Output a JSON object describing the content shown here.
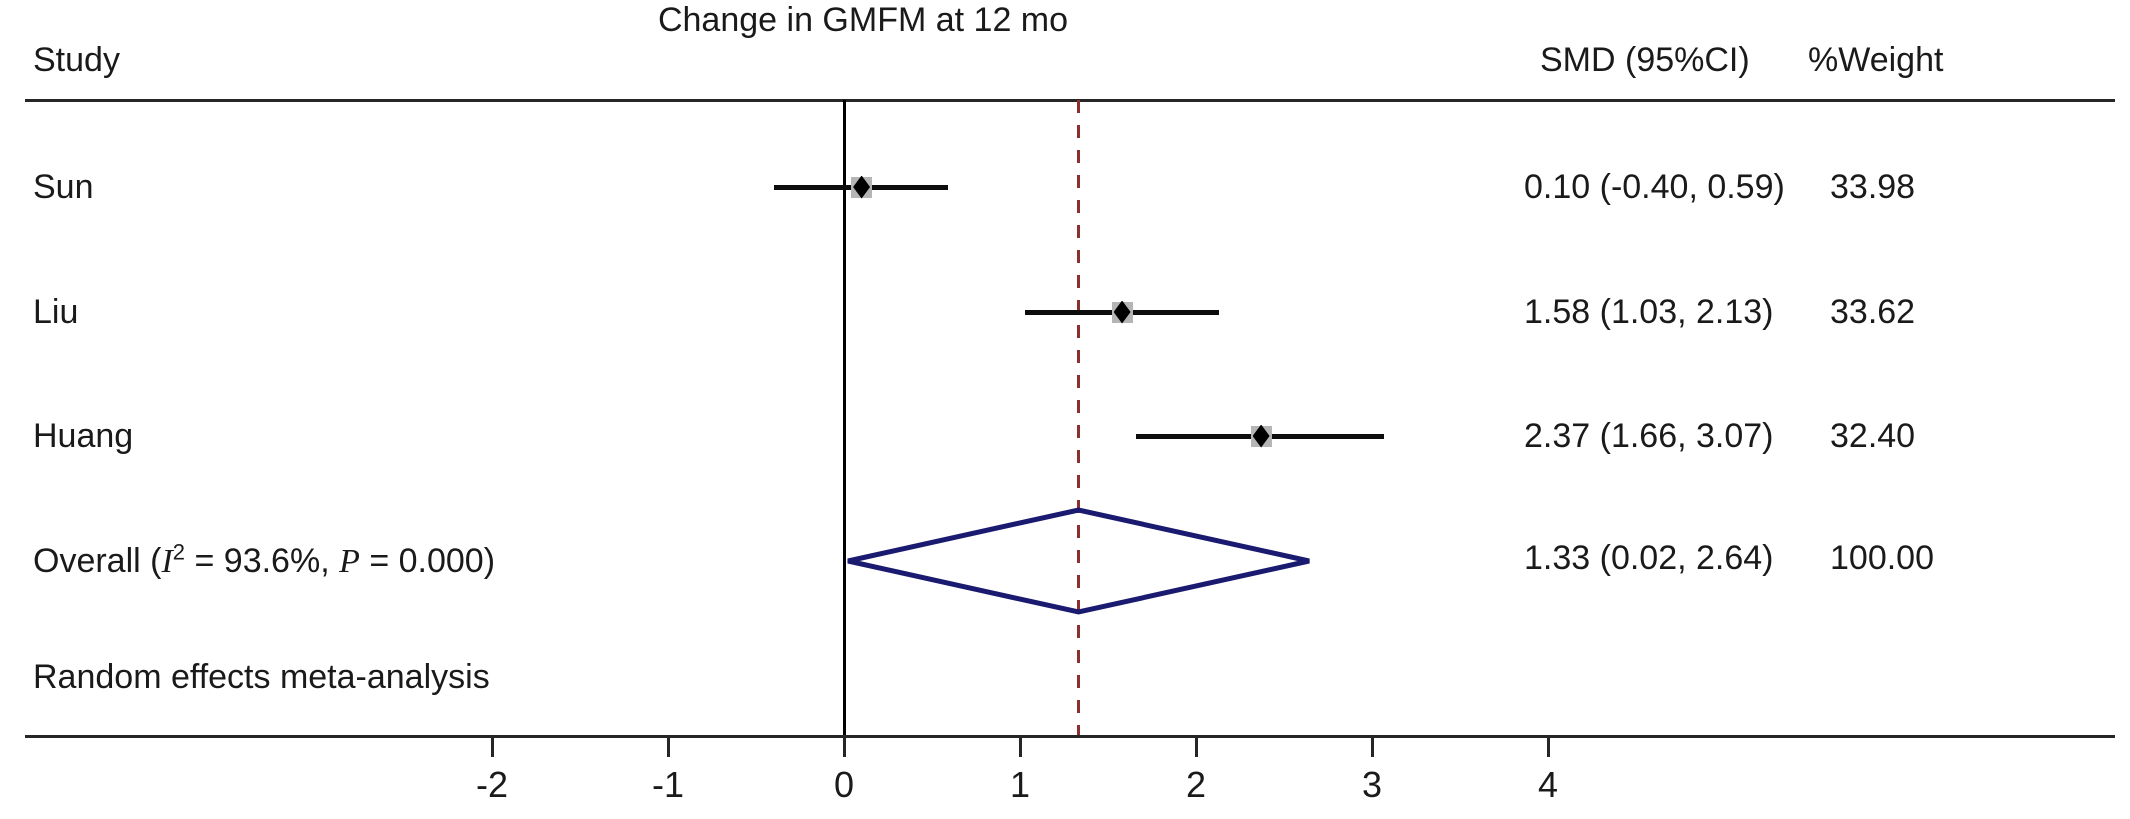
{
  "title": "Change in GMFM at 12 mo",
  "columns": {
    "study": "Study",
    "smd": "SMD (95%CI)",
    "weight": "%Weight"
  },
  "colors": {
    "text": "#1a1a1a",
    "frame_lines": "#262626",
    "zero_line": "#000000",
    "overall_dashed_line": "#8b2f2f",
    "ci_line": "#0d0d0d",
    "point_marker": "#000000",
    "weight_box": "#b5b5b5",
    "overall_diamond_outline": "#1a1a70"
  },
  "chart_data": {
    "type": "forest",
    "title": "Change in GMFM at 12 mo",
    "xlabel": "",
    "x_axis": {
      "ticks": [
        -2,
        -1,
        0,
        1,
        2,
        3,
        4
      ],
      "range_shown": [
        -2.6,
        4.6
      ],
      "zero_line": 0,
      "overall_dashed_line_at": 1.33
    },
    "studies": [
      {
        "label": "Sun",
        "smd": 0.1,
        "ci_low": -0.4,
        "ci_high": 0.59,
        "smd_text": "0.10 (-0.40, 0.59)",
        "weight": "33.98"
      },
      {
        "label": "Liu",
        "smd": 1.58,
        "ci_low": 1.03,
        "ci_high": 2.13,
        "smd_text": "1.58 (1.03, 2.13)",
        "weight": "33.62"
      },
      {
        "label": "Huang",
        "smd": 2.37,
        "ci_low": 1.66,
        "ci_high": 3.07,
        "smd_text": "2.37 (1.66, 3.07)",
        "weight": "32.40"
      }
    ],
    "overall": {
      "label_parts": {
        "pre": "Overall (",
        "i_sym": "I",
        "i_sup": "2",
        "mid": " = 93.6%, ",
        "p_sym": "P",
        "post": " = 0.000)"
      },
      "smd": 1.33,
      "ci_low": 0.02,
      "ci_high": 2.64,
      "smd_text": "1.33 (0.02, 2.64)",
      "weight": "100.00"
    },
    "note": "Random effects meta-analysis",
    "legend": "none",
    "grid": false
  }
}
